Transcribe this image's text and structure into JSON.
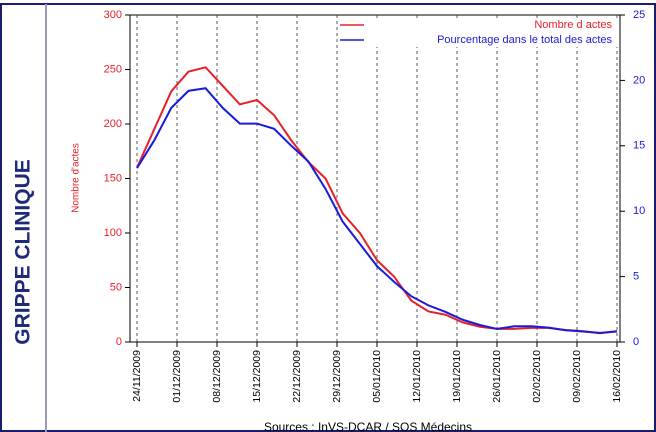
{
  "panel_title": "GRIPPE CLINIQUE",
  "chart_data": {
    "type": "line",
    "y_label": "Nombre d'actes",
    "source": "Sources : InVS-DCAR / SOS Médecins",
    "x": [
      "24/11/2009",
      "27/11/2009",
      "30/11/2009",
      "03/12/2009",
      "06/12/2009",
      "09/12/2009",
      "12/12/2009",
      "15/12/2009",
      "18/12/2009",
      "21/12/2009",
      "24/12/2009",
      "27/12/2009",
      "30/12/2009",
      "02/01/2010",
      "05/01/2010",
      "08/01/2010",
      "11/01/2010",
      "14/01/2010",
      "17/01/2010",
      "20/01/2010",
      "23/01/2010",
      "26/01/2010",
      "29/01/2010",
      "01/02/2010",
      "04/02/2010",
      "07/02/2010",
      "10/02/2010",
      "13/02/2010",
      "16/02/2010"
    ],
    "series": [
      {
        "name": "Nombre d actes",
        "color": "#e8202a",
        "axis": "y",
        "values": [
          160,
          195,
          230,
          248,
          252,
          235,
          218,
          222,
          208,
          185,
          165,
          150,
          118,
          100,
          75,
          60,
          38,
          28,
          25,
          18,
          14,
          12,
          12,
          13,
          13,
          11,
          10,
          8,
          10
        ]
      },
      {
        "name": "Pourcentage dans le total des actes",
        "color": "#1a1adb",
        "axis": "y2",
        "values": [
          13.3,
          15.4,
          17.9,
          19.2,
          19.4,
          17.9,
          16.7,
          16.7,
          16.3,
          15.0,
          13.8,
          11.7,
          9.2,
          7.5,
          5.8,
          4.6,
          3.5,
          2.8,
          2.3,
          1.7,
          1.3,
          1.0,
          1.2,
          1.2,
          1.1,
          0.9,
          0.8,
          0.7,
          0.8
        ]
      }
    ],
    "xlim": [
      "24/11/2009",
      "16/02/2010"
    ],
    "xticks": [
      "24/11/2009",
      "01/12/2009",
      "08/12/2009",
      "15/12/2009",
      "22/12/2009",
      "29/12/2009",
      "05/01/2010",
      "12/01/2010",
      "19/01/2010",
      "26/01/2010",
      "02/02/2010",
      "09/02/2010",
      "16/02/2010"
    ],
    "ylim": [
      0,
      300
    ],
    "yticks": [
      0,
      50,
      100,
      150,
      200,
      250,
      300
    ],
    "y2lim": [
      0,
      25
    ],
    "y2ticks": [
      0,
      5,
      10,
      15,
      20,
      25
    ],
    "grid": true,
    "legend": "top-right"
  }
}
